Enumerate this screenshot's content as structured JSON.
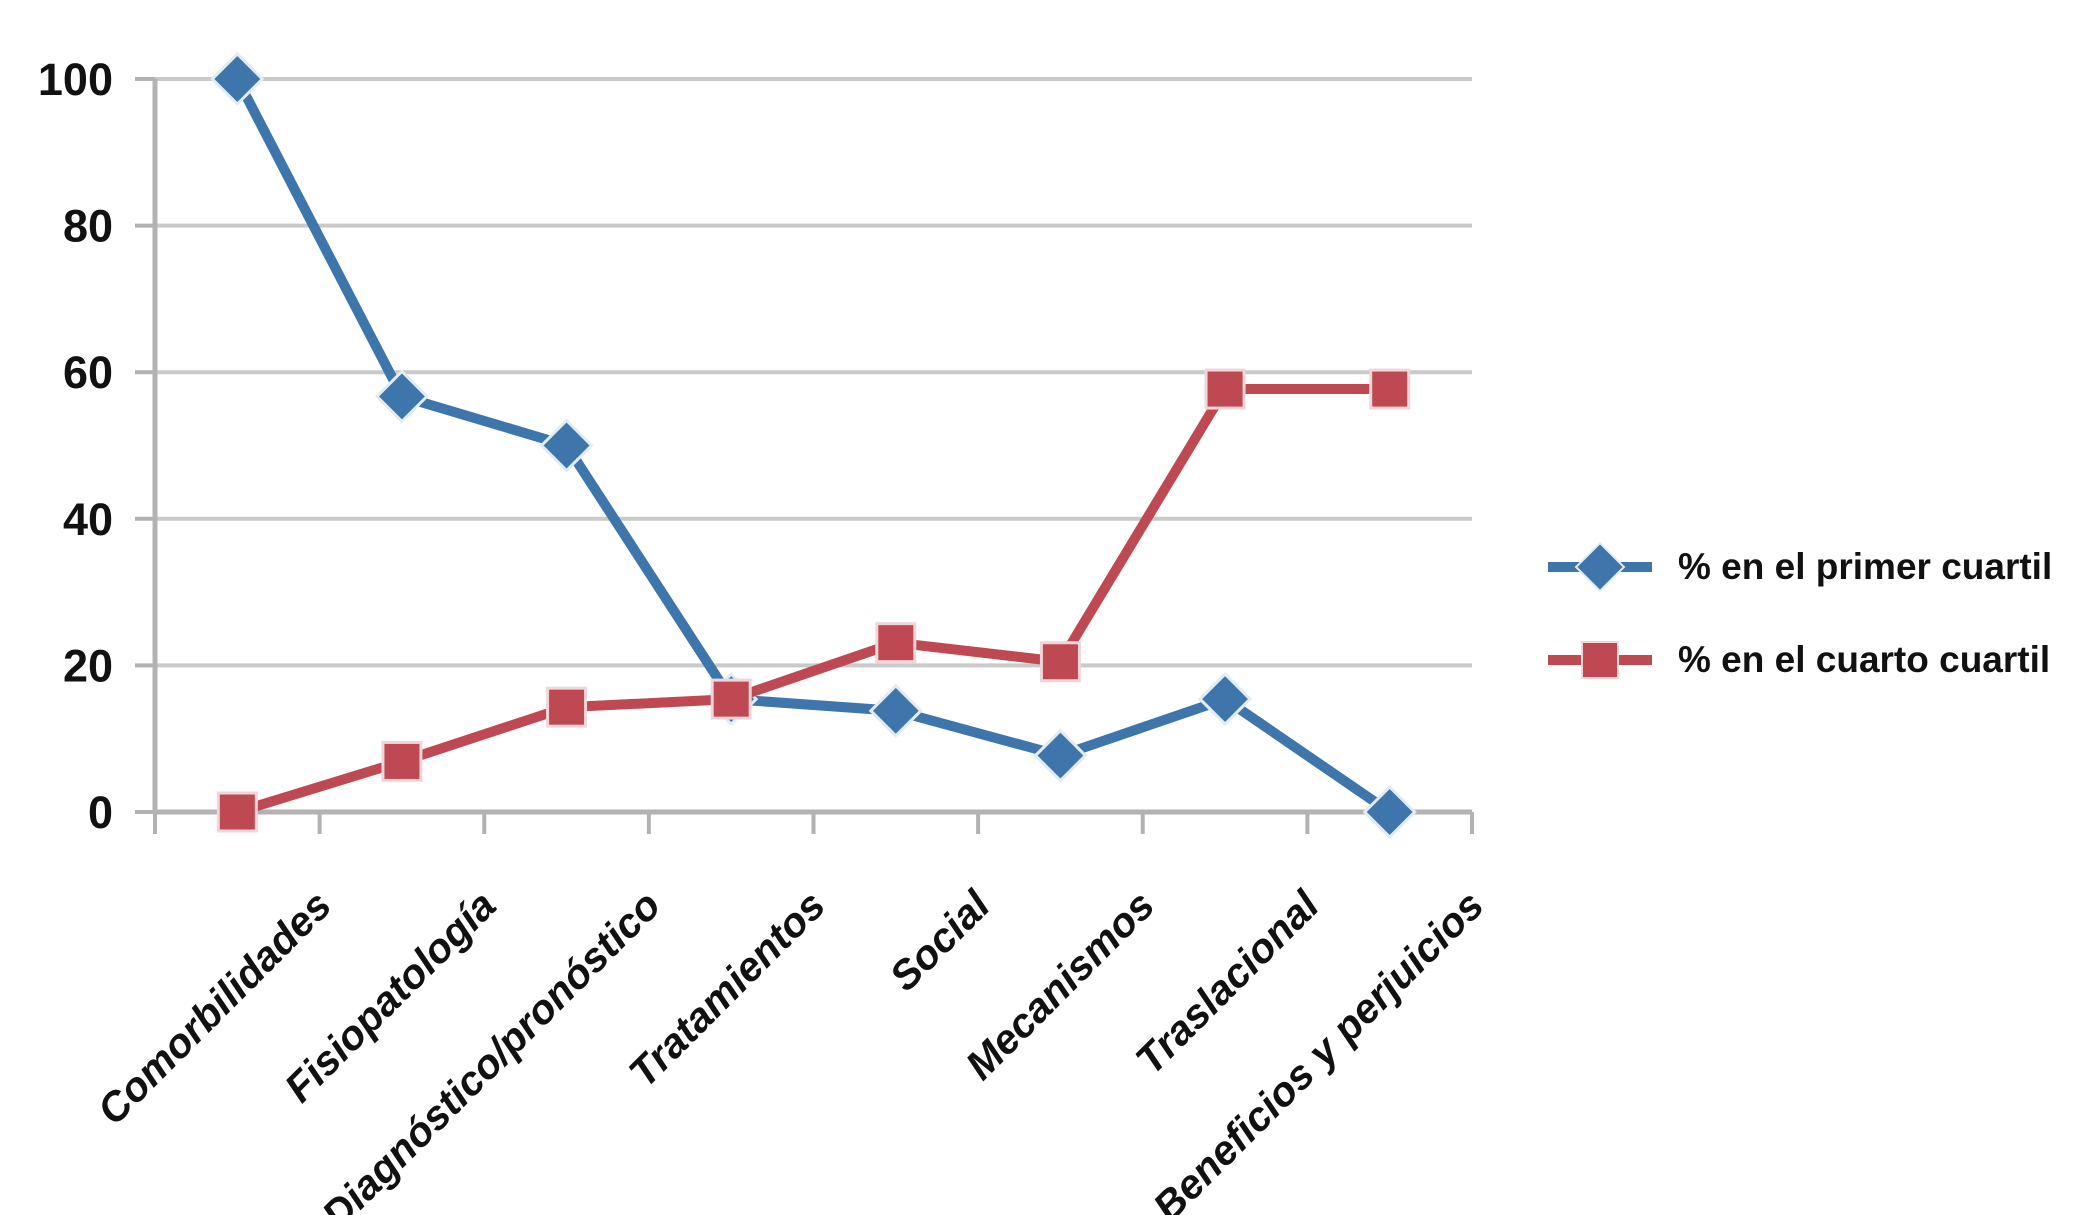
{
  "chart_data": {
    "type": "line",
    "title": "",
    "xlabel": "",
    "ylabel": "",
    "categories": [
      "Comorbilidades",
      "Fisiopatología",
      "Diagnóstico/pronóstico",
      "Tratamientos",
      "Social",
      "Mecanismos",
      "Traslacional",
      "Beneficios y perjuicios"
    ],
    "series": [
      {
        "name": "% en el primer cuartil",
        "marker": "diamond",
        "color": "#3E76AC",
        "marker_stroke": "#E3EBF3",
        "values": [
          100,
          56.7,
          50,
          15.4,
          13.8,
          7.7,
          15.4,
          0
        ]
      },
      {
        "name": "% en el cuarto cuartil",
        "marker": "square",
        "color": "#BE4952",
        "marker_stroke": "#F0D6D9",
        "values": [
          0,
          6.9,
          14.3,
          15.4,
          23.1,
          20.5,
          57.7,
          57.7
        ]
      }
    ],
    "ylim": [
      0,
      100
    ],
    "yticks": [
      0,
      20,
      40,
      60,
      80,
      100
    ],
    "grid": "horizontal-only",
    "grid_color": "#C9C9C9",
    "axis_color": "#B2B2B2",
    "tick_label_color": "#111111",
    "legend_position": "right",
    "background_color": "#FFFFFF",
    "x_label_rotation_deg": -45
  }
}
